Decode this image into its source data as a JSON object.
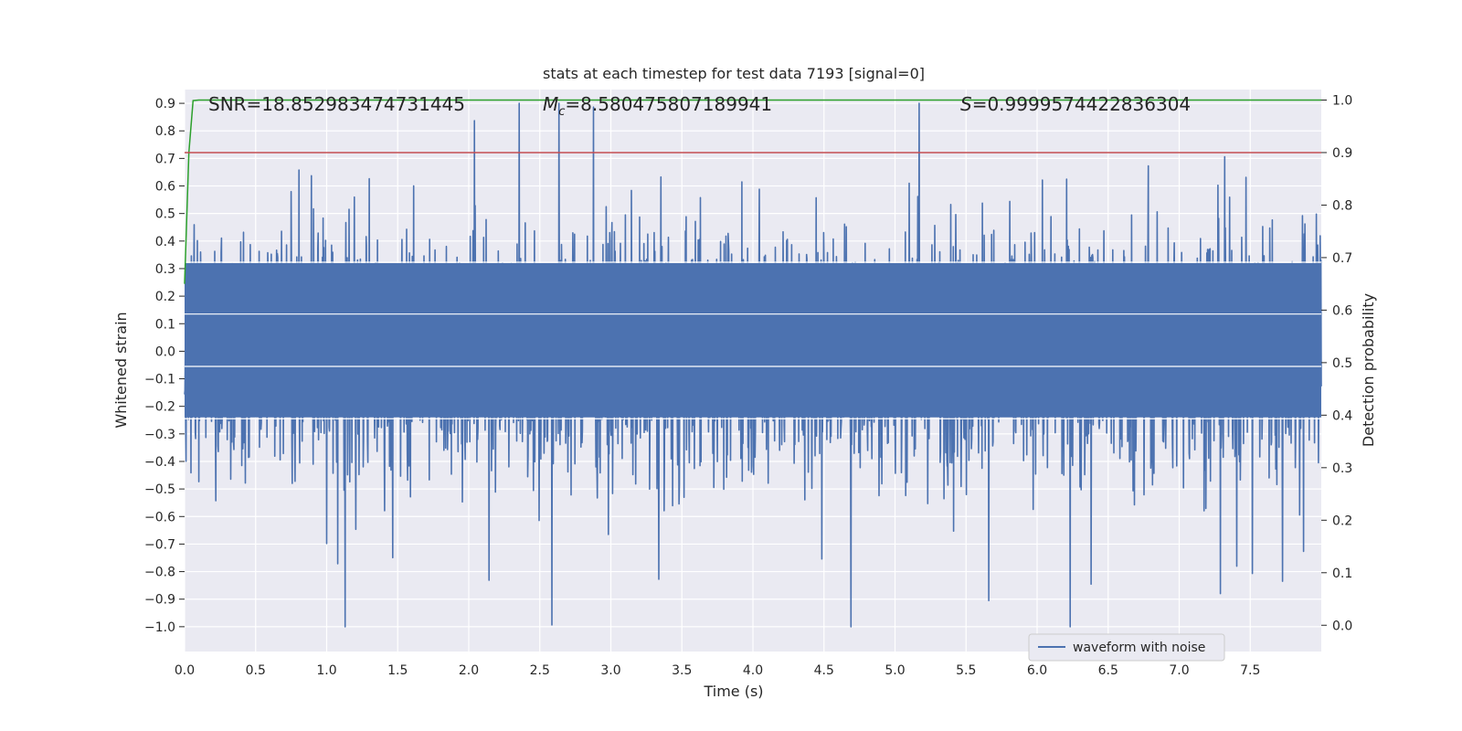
{
  "chart_data": {
    "type": "line",
    "title": "stats at each timestep for test data 7193 [signal=0]",
    "xlabel": "Time (s)",
    "ylabel_left": "Whitened strain",
    "ylabel_right": "Detection probability",
    "xlim": [
      0.0,
      8.0
    ],
    "ylim_left": [
      -1.09,
      0.95
    ],
    "ylim_right": [
      -0.05,
      1.02
    ],
    "x_ticks": [
      "0.0",
      "0.5",
      "1.0",
      "1.5",
      "2.0",
      "2.5",
      "3.0",
      "3.5",
      "4.0",
      "4.5",
      "5.0",
      "5.5",
      "6.0",
      "6.5",
      "7.0",
      "7.5"
    ],
    "y_ticks_left": [
      "0.9",
      "0.8",
      "0.7",
      "0.6",
      "0.5",
      "0.4",
      "0.3",
      "0.2",
      "0.1",
      "0.0",
      "−0.1",
      "−0.2",
      "−0.3",
      "−0.4",
      "−0.5",
      "−0.6",
      "−0.7",
      "−0.8",
      "−0.9",
      "−1.0"
    ],
    "y_ticks_right": [
      "1.0",
      "0.9",
      "0.8",
      "0.7",
      "0.6",
      "0.5",
      "0.4",
      "0.3",
      "0.2",
      "0.1",
      "0.0"
    ],
    "annotations": {
      "snr": "SNR=18.852983474731445",
      "mc_symbol": "M",
      "mc_sub": "c",
      "mc_value": "=8.580475807189941",
      "s_symbol": "S",
      "s_value": "=0.9999574422836304"
    },
    "legend": {
      "position": "lower-right",
      "entries": [
        "waveform with noise"
      ]
    },
    "grid": true,
    "series": [
      {
        "name": "waveform with noise",
        "axis": "left",
        "color": "#4c72b0",
        "description_points": {
          "t": [
            0.0,
            8.0
          ],
          "envelope_upper_typical": 0.5,
          "envelope_lower_typical": -0.5,
          "max": 0.9,
          "min": -1.0
        }
      },
      {
        "axis": "right",
        "color": "#2ca02c",
        "x": [
          0.0,
          0.03,
          0.06,
          0.1,
          0.2,
          8.0
        ],
        "y": [
          0.65,
          0.9,
          0.999,
          1.0,
          1.0,
          1.0
        ]
      },
      {
        "axis": "right",
        "color": "#c44e52",
        "x": [
          0.0,
          8.0
        ],
        "y": [
          0.9,
          0.9
        ]
      }
    ]
  },
  "colors": {
    "background": "#eaeaf2",
    "grid": "#ffffff",
    "waveform": "#4c72b0",
    "probability": "#2ca02c",
    "threshold": "#c44e52"
  }
}
